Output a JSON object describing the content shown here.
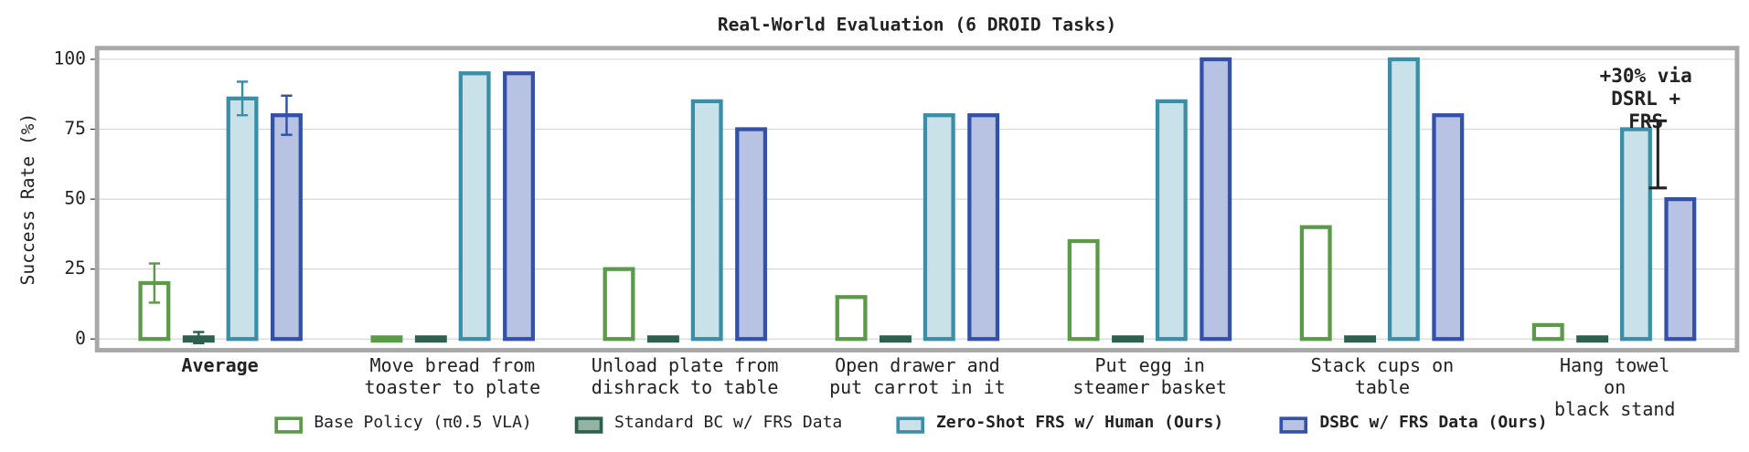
{
  "chart_data": {
    "type": "bar",
    "title": "Real-World Evaluation (6 DROID Tasks)",
    "y_label": "Success Rate (%)",
    "categories": [
      "Average",
      "Move bread from\ntoaster to plate",
      "Unload plate from\ndishrack to table",
      "Open drawer and\nput carrot in it",
      "Put egg in\nsteamer basket",
      "Stack cups on\ntable",
      "Hang towel on\nblack stand"
    ],
    "series": [
      {
        "name": "Base Policy (π0.5 VLA)",
        "color": "#5a9a48",
        "fill": "none",
        "values": [
          20,
          0,
          25,
          15,
          35,
          40,
          5
        ],
        "errors": [
          7,
          null,
          null,
          null,
          null,
          null,
          null
        ]
      },
      {
        "name": "Standard BC w/ FRS Data",
        "color": "#2f5f4e",
        "fill": "#93b4a4",
        "values": [
          0.5,
          0,
          0,
          0,
          0,
          0,
          0
        ],
        "errors": [
          2,
          null,
          null,
          null,
          null,
          null,
          null
        ]
      },
      {
        "name": "Zero-Shot FRS w/ Human (Ours)",
        "color": "#3a8ea8",
        "fill": "#c9e2ea",
        "values": [
          86,
          95,
          85,
          80,
          85,
          100,
          75
        ],
        "errors": [
          6,
          null,
          null,
          null,
          null,
          null,
          null
        ]
      },
      {
        "name": "DSBC w/ FRS Data (Ours)",
        "color": "#3451a8",
        "fill": "#b8c3e4",
        "values": [
          80,
          95,
          75,
          80,
          100,
          80,
          50
        ],
        "errors": [
          7,
          null,
          null,
          null,
          null,
          null,
          null
        ]
      }
    ],
    "annotation": {
      "text": "+30% via\nDSRL + FRS",
      "from": 54,
      "to": 78
    },
    "ylim": [
      -4,
      104
    ],
    "yticks": [
      0,
      25,
      50,
      75,
      100
    ],
    "grid": true
  }
}
